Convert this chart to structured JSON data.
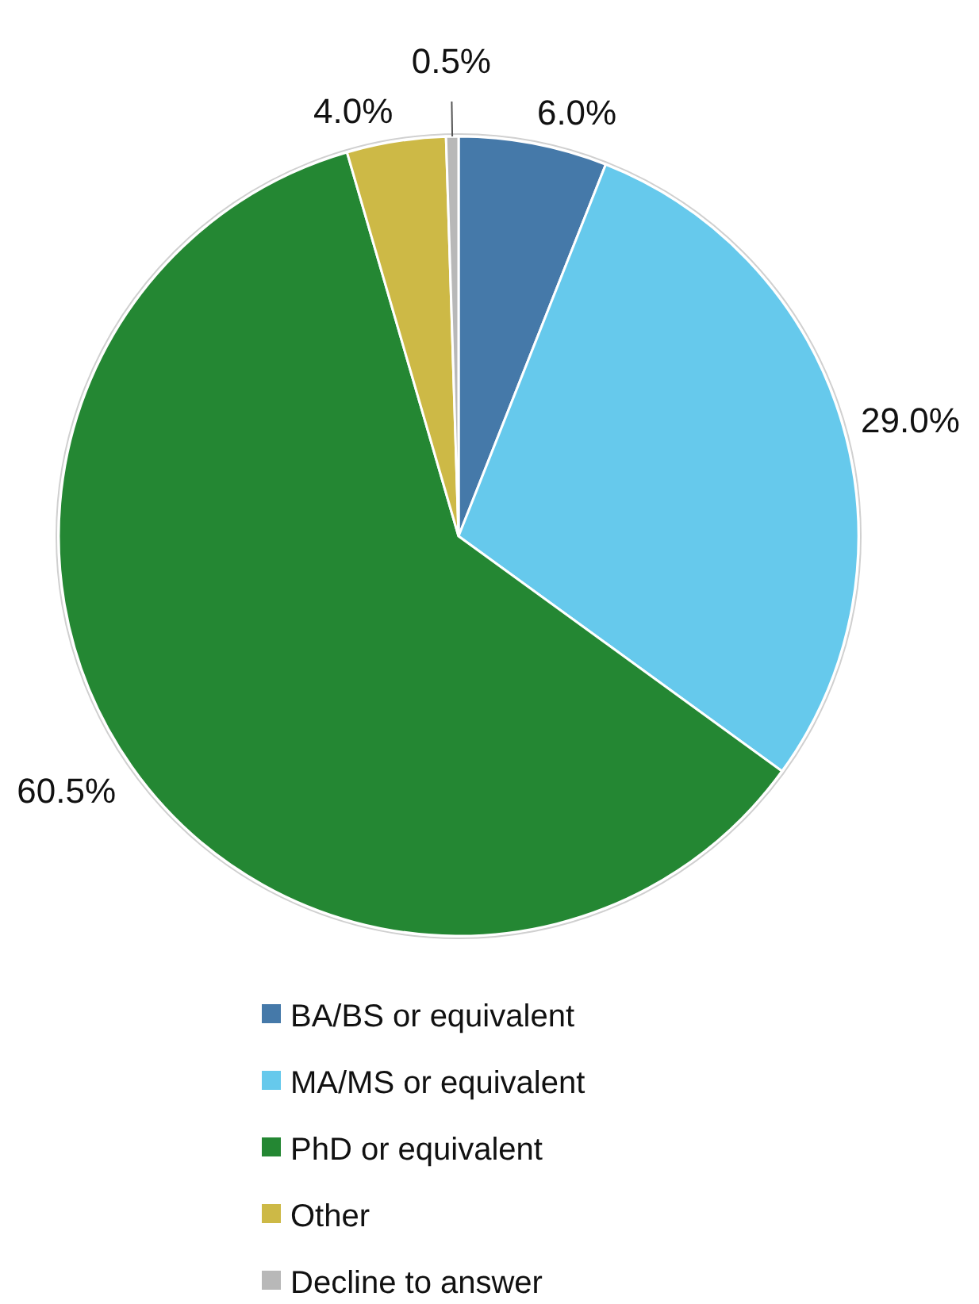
{
  "chart_data": {
    "type": "pie",
    "categories": [
      "BA/BS or equivalent",
      "MA/MS or equivalent",
      "PhD or equivalent",
      "Other",
      "Decline to answer"
    ],
    "values": [
      6.0,
      29.0,
      60.5,
      4.0,
      0.5
    ],
    "colors": [
      "#4579a9",
      "#66c9ec",
      "#248733",
      "#cdb946",
      "#b8b8b8"
    ],
    "value_labels": [
      "6.0%",
      "29.0%",
      "60.5%",
      "4.0%",
      "0.5%"
    ],
    "legend": "bottom"
  }
}
